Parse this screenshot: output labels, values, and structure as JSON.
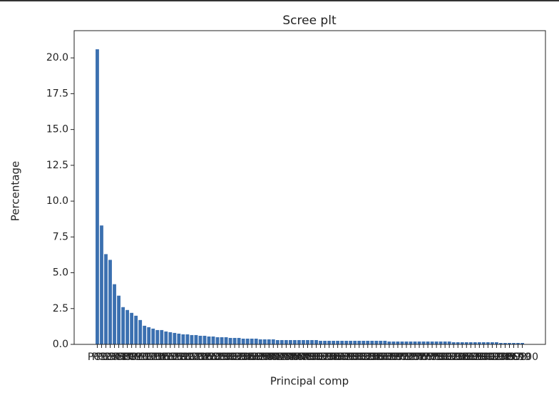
{
  "chart_data": {
    "type": "bar",
    "title": "Scree plt",
    "x_label": "Principal comp",
    "y_label": "Percentage",
    "categories": [
      "PC1",
      "PC2",
      "PC3",
      "PC4",
      "PC5",
      "PC6",
      "PC7",
      "PC8",
      "PC9",
      "PC10",
      "PC11",
      "PC12",
      "PC13",
      "PC14",
      "PC15",
      "PC16",
      "PC17",
      "PC18",
      "PC19",
      "PC20",
      "PC21",
      "PC22",
      "PC23",
      "PC24",
      "PC25",
      "PC26",
      "PC27",
      "PC28",
      "PC29",
      "PC30",
      "PC31",
      "PC32",
      "PC33",
      "PC34",
      "PC35",
      "PC36",
      "PC37",
      "PC38",
      "PC39",
      "PC40",
      "PC41",
      "PC42",
      "PC43",
      "PC44",
      "PC45",
      "PC46",
      "PC47",
      "PC48",
      "PC49",
      "PC50",
      "PC51",
      "PC52",
      "PC53",
      "PC54",
      "PC55",
      "PC56",
      "PC57",
      "PC58",
      "PC59",
      "PC60",
      "PC61",
      "PC62",
      "PC63",
      "PC64",
      "PC65",
      "PC66",
      "PC67",
      "PC68",
      "PC69",
      "PC70",
      "PC71",
      "PC72",
      "PC73",
      "PC74",
      "PC75",
      "PC76",
      "PC77",
      "PC78",
      "PC79",
      "PC80",
      "PC81",
      "PC82",
      "PC83",
      "PC84",
      "PC85",
      "PC86",
      "PC87",
      "PC88",
      "PC89",
      "PC90",
      "PC91",
      "PC92",
      "PC93",
      "PC94",
      "PC95",
      "PC96",
      "PC97",
      "PC98",
      "PC99",
      "PC100"
    ],
    "values": [
      20.6,
      8.3,
      6.3,
      5.9,
      4.2,
      3.4,
      2.6,
      2.4,
      2.2,
      2.0,
      1.7,
      1.3,
      1.2,
      1.1,
      1.0,
      1.0,
      0.9,
      0.85,
      0.8,
      0.75,
      0.7,
      0.7,
      0.65,
      0.65,
      0.6,
      0.6,
      0.55,
      0.55,
      0.5,
      0.5,
      0.5,
      0.45,
      0.45,
      0.45,
      0.4,
      0.4,
      0.4,
      0.4,
      0.35,
      0.35,
      0.35,
      0.35,
      0.3,
      0.3,
      0.3,
      0.3,
      0.3,
      0.3,
      0.3,
      0.3,
      0.3,
      0.3,
      0.25,
      0.25,
      0.25,
      0.25,
      0.25,
      0.25,
      0.25,
      0.25,
      0.25,
      0.25,
      0.25,
      0.25,
      0.25,
      0.25,
      0.25,
      0.25,
      0.2,
      0.2,
      0.2,
      0.2,
      0.2,
      0.2,
      0.2,
      0.2,
      0.2,
      0.2,
      0.2,
      0.2,
      0.2,
      0.2,
      0.2,
      0.15,
      0.15,
      0.15,
      0.15,
      0.15,
      0.15,
      0.15,
      0.15,
      0.15,
      0.15,
      0.15,
      0.1,
      0.1,
      0.1,
      0.1,
      0.1,
      0.1
    ],
    "color": "#3b70b0",
    "ylim": [
      0,
      21.9
    ],
    "yticks": [
      {
        "value": 0,
        "label": "0.0"
      },
      {
        "value": 2.5,
        "label": "2.5"
      },
      {
        "value": 5,
        "label": "5.0"
      },
      {
        "value": 7.5,
        "label": "7.5"
      },
      {
        "value": 10,
        "label": "10.0"
      },
      {
        "value": 12.5,
        "label": "12.5"
      },
      {
        "value": 15,
        "label": "15.0"
      },
      {
        "value": 17.5,
        "label": "17.5"
      },
      {
        "value": 20,
        "label": "20.0"
      }
    ],
    "grid": false
  }
}
